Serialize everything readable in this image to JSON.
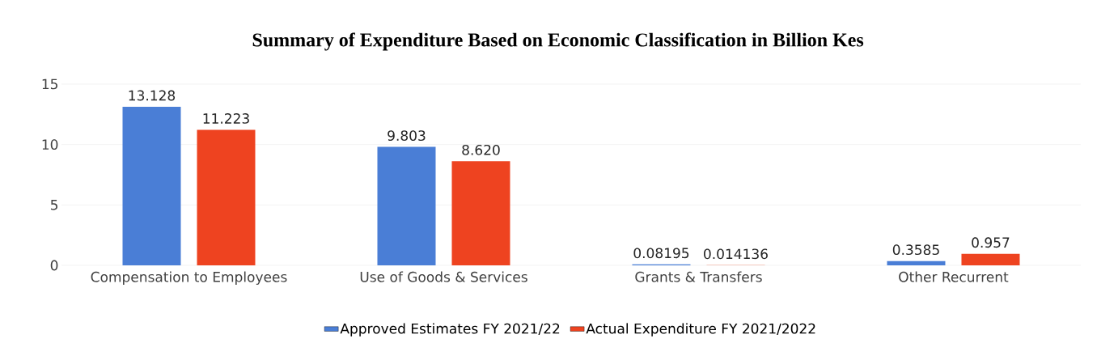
{
  "chart_data": {
    "type": "bar",
    "title": "Summary of Expenditure Based on  Economic Classification in Billion Kes",
    "categories": [
      "Compensation to Employees",
      "Use of Goods & Services",
      "Grants & Transfers",
      "Other Recurrent"
    ],
    "series": [
      {
        "name": "Approved Estimates FY 2021/22",
        "color": "#4a7ed6",
        "values": [
          13.128,
          9.803,
          0.08195,
          0.3585
        ],
        "value_labels": [
          "13.128",
          "9.803",
          "0.08195",
          "0.3585"
        ]
      },
      {
        "name": "Actual Expenditure FY 2021/2022",
        "color": "#ee4320",
        "values": [
          11.223,
          8.62,
          0.014136,
          0.957
        ],
        "value_labels": [
          "11.223",
          "8.620",
          "0.014136",
          "0.957"
        ]
      }
    ],
    "ylim": [
      0,
      15
    ],
    "yticks": [
      0,
      5,
      10,
      15
    ],
    "grid": "y",
    "legend": "bottom"
  }
}
